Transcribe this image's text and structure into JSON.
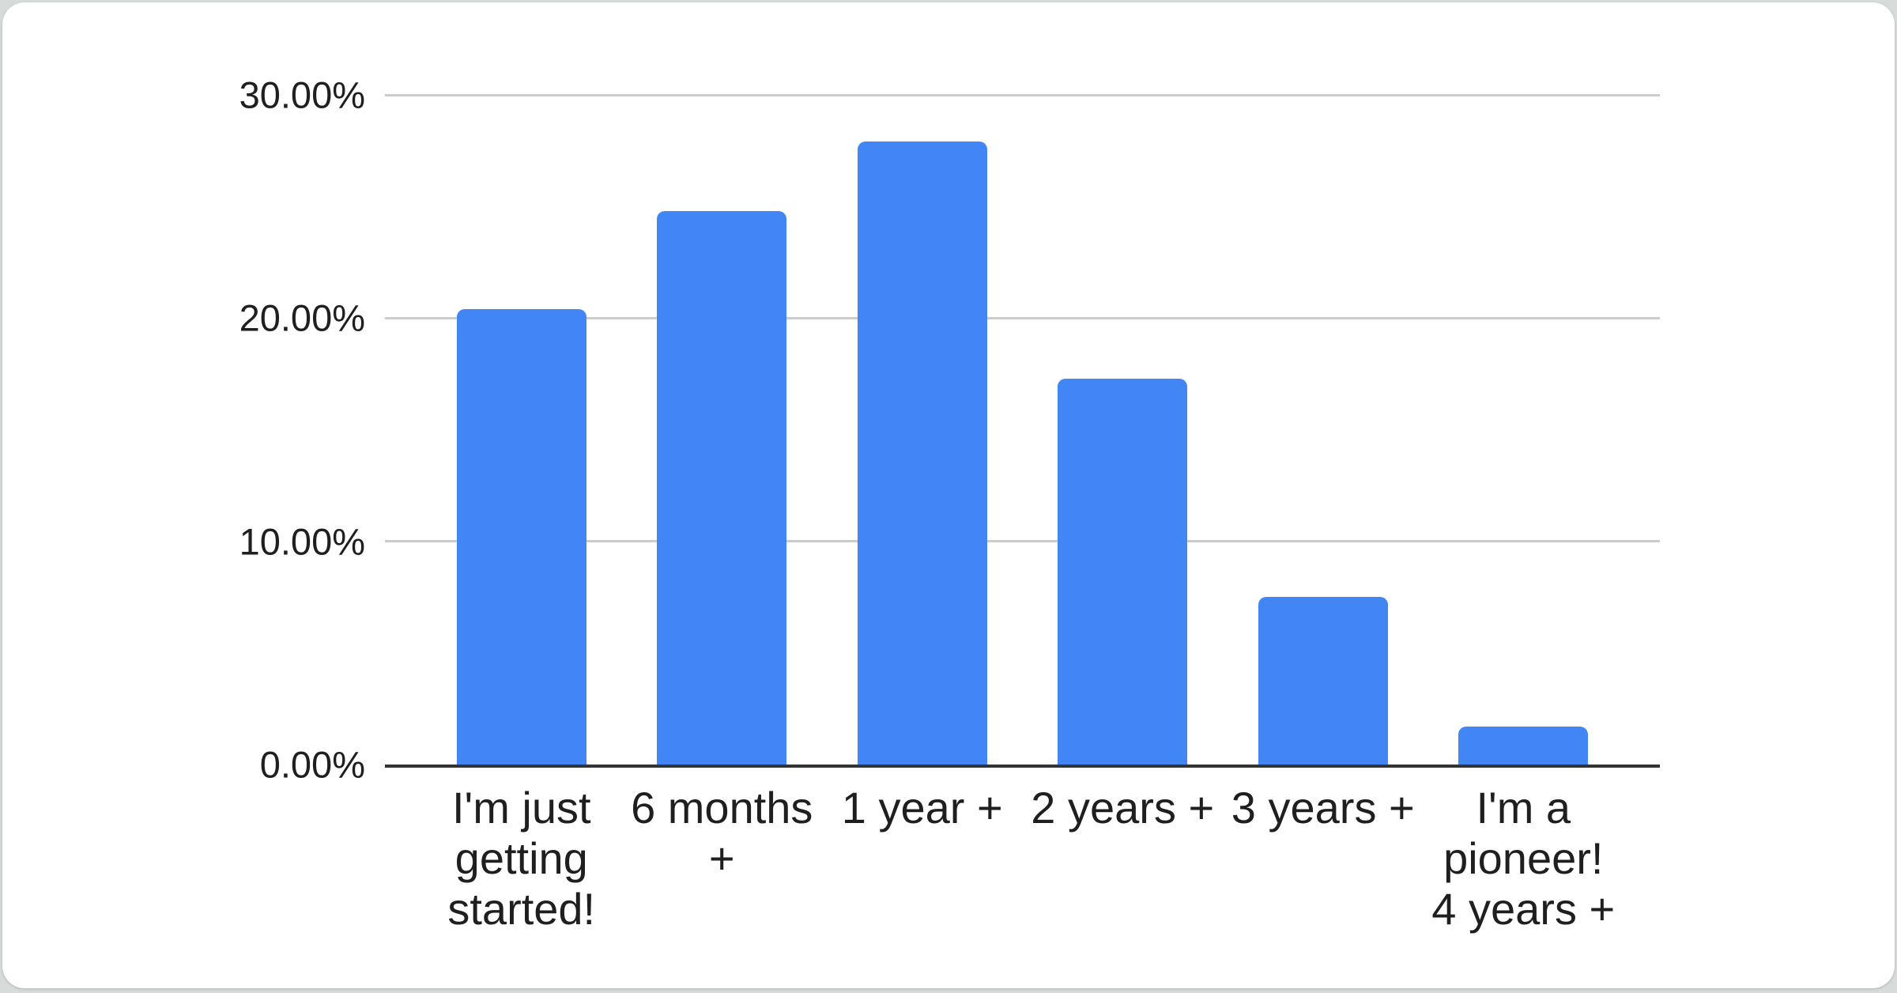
{
  "page": {
    "background": "#d7dcdb",
    "card_background": "#ffffff"
  },
  "chart_data": {
    "type": "bar",
    "title": "",
    "legend": "none",
    "grid": true,
    "categories": [
      "I'm just getting started!",
      "6 months +",
      "1 year +",
      "2 years +",
      "3 years +",
      "I'm a pioneer! 4 years +"
    ],
    "category_lines": [
      [
        "I'm just",
        "getting",
        "started!"
      ],
      [
        "6 months",
        "+"
      ],
      [
        "1 year +"
      ],
      [
        "2 years +"
      ],
      [
        "3 years +"
      ],
      [
        "I'm a",
        "pioneer!",
        "4 years +"
      ]
    ],
    "values": [
      20.4,
      24.8,
      27.9,
      17.3,
      7.5,
      1.7
    ],
    "value_unit": "%",
    "xlabel": "",
    "ylabel": "",
    "ylim": [
      0,
      30
    ],
    "yticks": [
      {
        "value": 30,
        "label": "30.00%"
      },
      {
        "value": 20,
        "label": "20.00%"
      },
      {
        "value": 10,
        "label": "10.00%"
      },
      {
        "value": 0,
        "label": "0.00%"
      }
    ],
    "bar_color": "#4285f4",
    "gridline_color": "#cccccc",
    "axis_line_color": "#333333",
    "label_color": "#1f1f1f"
  }
}
